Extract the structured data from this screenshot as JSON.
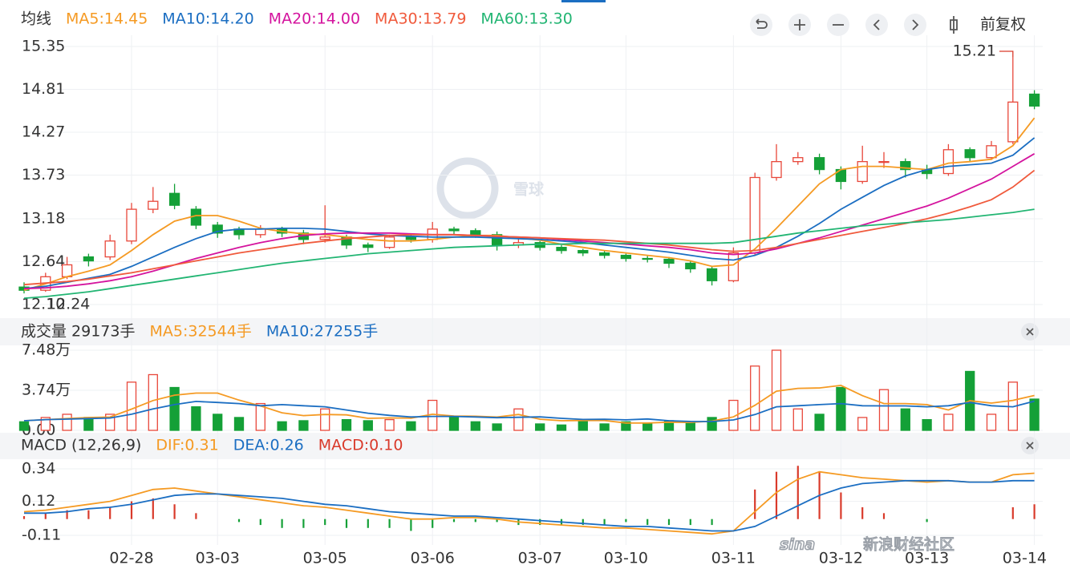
{
  "toolbar_label": "前复权",
  "watermark": "雪球",
  "footer_watermark": [
    "sina",
    "新浪财经社区"
  ],
  "chart_data": [
    {
      "type": "candlestick",
      "title": "均线",
      "categories": [
        null,
        null,
        null,
        null,
        null,
        "02-28",
        null,
        null,
        null,
        "03-03",
        null,
        null,
        null,
        null,
        "03-05",
        null,
        null,
        null,
        null,
        "03-06",
        null,
        null,
        null,
        null,
        "03-07",
        null,
        null,
        null,
        "03-10",
        null,
        null,
        null,
        null,
        "03-11",
        null,
        null,
        null,
        null,
        "03-12",
        null,
        null,
        null,
        "03-13",
        null,
        null,
        null,
        null,
        "03-14"
      ],
      "open": [
        12.32,
        12.28,
        12.45,
        12.7,
        12.7,
        12.9,
        13.3,
        13.5,
        13.3,
        13.1,
        13.05,
        12.98,
        13.05,
        13.0,
        12.92,
        12.95,
        12.85,
        12.82,
        12.95,
        12.92,
        13.05,
        13.03,
        12.98,
        12.85,
        12.88,
        12.82,
        12.78,
        12.75,
        12.72,
        12.68,
        12.67,
        12.62,
        12.55,
        12.4,
        12.75,
        13.7,
        13.9,
        13.95,
        13.8,
        13.65,
        13.9,
        13.9,
        13.8,
        13.75,
        14.05,
        13.95,
        14.15,
        14.75
      ],
      "high": [
        12.38,
        12.5,
        12.7,
        12.74,
        12.98,
        13.38,
        13.58,
        13.62,
        13.34,
        13.14,
        13.08,
        13.1,
        13.08,
        13.04,
        13.35,
        12.98,
        12.88,
        12.98,
        12.99,
        13.14,
        13.08,
        13.06,
        13.02,
        12.94,
        12.9,
        12.85,
        12.8,
        12.78,
        12.74,
        12.71,
        12.7,
        12.65,
        12.58,
        12.82,
        13.76,
        14.12,
        14.02,
        14.0,
        13.84,
        14.1,
        14.02,
        13.94,
        13.86,
        14.12,
        14.08,
        14.16,
        15.21,
        14.8
      ],
      "low": [
        12.24,
        12.26,
        12.42,
        12.58,
        12.66,
        12.86,
        13.25,
        13.3,
        13.05,
        12.94,
        12.92,
        12.94,
        12.95,
        12.86,
        12.88,
        12.8,
        12.76,
        12.8,
        12.88,
        12.88,
        12.98,
        12.94,
        12.78,
        12.81,
        12.78,
        12.74,
        12.71,
        12.68,
        12.64,
        12.63,
        12.56,
        12.5,
        12.34,
        12.38,
        12.72,
        13.66,
        13.86,
        13.74,
        13.55,
        13.62,
        13.82,
        13.7,
        13.68,
        13.72,
        13.9,
        13.92,
        14.12,
        14.56
      ],
      "close": [
        12.28,
        12.45,
        12.6,
        12.65,
        12.9,
        13.3,
        13.4,
        13.35,
        13.1,
        13.0,
        12.98,
        13.05,
        13.0,
        12.92,
        12.95,
        12.85,
        12.82,
        12.95,
        12.92,
        13.05,
        13.03,
        12.98,
        12.85,
        12.88,
        12.82,
        12.78,
        12.75,
        12.72,
        12.68,
        12.67,
        12.62,
        12.55,
        12.4,
        12.75,
        13.7,
        13.9,
        13.95,
        13.8,
        13.65,
        13.9,
        13.9,
        13.8,
        13.75,
        14.05,
        13.95,
        14.1,
        14.65,
        14.6
      ],
      "up_color": "#e8473a",
      "down_color": "#14a037",
      "series": [
        {
          "name": "MA5:14.45",
          "color": "#f59a23",
          "values": [
            12.28,
            12.36,
            12.45,
            12.52,
            12.6,
            12.78,
            12.98,
            13.15,
            13.22,
            13.22,
            13.15,
            13.06,
            13.02,
            12.99,
            12.98,
            12.95,
            12.92,
            12.9,
            12.9,
            12.92,
            12.95,
            12.97,
            12.97,
            12.94,
            12.91,
            12.86,
            12.82,
            12.78,
            12.75,
            12.72,
            12.69,
            12.65,
            12.58,
            12.6,
            12.8,
            13.06,
            13.34,
            13.62,
            13.8,
            13.84,
            13.84,
            13.82,
            13.8,
            13.88,
            13.9,
            13.93,
            14.1,
            14.45
          ]
        },
        {
          "name": "MA10:14.20",
          "color": "#1b6ec2",
          "values": [
            12.3,
            12.33,
            12.38,
            12.43,
            12.48,
            12.58,
            12.7,
            12.82,
            12.93,
            13.02,
            13.05,
            13.05,
            13.06,
            13.06,
            13.05,
            13.02,
            12.99,
            12.97,
            12.96,
            12.95,
            12.95,
            12.95,
            12.94,
            12.93,
            12.92,
            12.9,
            12.88,
            12.85,
            12.82,
            12.79,
            12.76,
            12.72,
            12.68,
            12.66,
            12.72,
            12.82,
            12.96,
            13.12,
            13.3,
            13.45,
            13.6,
            13.72,
            13.8,
            13.84,
            13.86,
            13.88,
            13.98,
            14.2
          ]
        },
        {
          "name": "MA20:14.00",
          "color": "#d4149e",
          "values": [
            12.3,
            12.31,
            12.33,
            12.36,
            12.4,
            12.45,
            12.52,
            12.6,
            12.68,
            12.75,
            12.82,
            12.88,
            12.93,
            12.97,
            12.99,
            13.0,
            13.0,
            13.0,
            12.99,
            12.98,
            12.98,
            12.97,
            12.96,
            12.95,
            12.94,
            12.92,
            12.9,
            12.88,
            12.86,
            12.84,
            12.82,
            12.79,
            12.75,
            12.73,
            12.75,
            12.8,
            12.87,
            12.94,
            13.02,
            13.1,
            13.18,
            13.26,
            13.34,
            13.44,
            13.56,
            13.68,
            13.84,
            14.0
          ]
        },
        {
          "name": "MA30:13.79",
          "color": "#f05a3c",
          "values": [
            12.35,
            12.37,
            12.39,
            12.42,
            12.46,
            12.5,
            12.55,
            12.6,
            12.65,
            12.7,
            12.75,
            12.79,
            12.83,
            12.87,
            12.9,
            12.93,
            12.95,
            12.97,
            12.98,
            12.98,
            12.98,
            12.97,
            12.96,
            12.95,
            12.94,
            12.93,
            12.92,
            12.91,
            12.89,
            12.87,
            12.85,
            12.82,
            12.79,
            12.77,
            12.78,
            12.82,
            12.87,
            12.92,
            12.97,
            13.02,
            13.07,
            13.12,
            13.18,
            13.25,
            13.33,
            13.42,
            13.58,
            13.79
          ]
        },
        {
          "name": "MA60:13.30",
          "color": "#22b573",
          "values": [
            12.18,
            12.2,
            12.23,
            12.26,
            12.3,
            12.34,
            12.38,
            12.42,
            12.46,
            12.5,
            12.54,
            12.58,
            12.62,
            12.65,
            12.68,
            12.71,
            12.74,
            12.76,
            12.78,
            12.8,
            12.82,
            12.83,
            12.84,
            12.85,
            12.86,
            12.86,
            12.87,
            12.87,
            12.87,
            12.87,
            12.87,
            12.87,
            12.87,
            12.88,
            12.92,
            12.96,
            13.0,
            13.03,
            13.06,
            13.09,
            13.11,
            13.13,
            13.15,
            13.17,
            13.2,
            13.23,
            13.26,
            13.3
          ]
        }
      ],
      "ylim": [
        12.1,
        15.35
      ],
      "yticks": [
        15.35,
        14.81,
        14.27,
        13.73,
        13.18,
        12.64,
        {
          "value": 12.1,
          "label": "12.10"
        }
      ],
      "annotations": [
        {
          "text": "15.21",
          "value": 15.21
        },
        {
          "text": "12.24",
          "value": 12.24
        }
      ],
      "grid": true
    },
    {
      "type": "bar",
      "title": "成交量 29173手",
      "values": [
        8000,
        12000,
        15000,
        12000,
        15000,
        45000,
        52000,
        40000,
        22000,
        15000,
        12000,
        25000,
        8000,
        9000,
        20000,
        10000,
        9000,
        10000,
        8000,
        28000,
        12000,
        8000,
        6000,
        20000,
        6000,
        5000,
        9000,
        6000,
        8000,
        6000,
        9000,
        8000,
        12000,
        28000,
        60000,
        74800,
        20000,
        15000,
        40000,
        12000,
        38000,
        20000,
        10000,
        15000,
        55000,
        15000,
        45000,
        29173
      ],
      "series": [
        {
          "name": "MA5:32544手",
          "color": "#f59a23",
          "values": [
            9000,
            10000,
            11000,
            12000,
            12400,
            19800,
            27800,
            32800,
            34800,
            34800,
            28200,
            22800,
            16400,
            13800,
            14800,
            14400,
            11200,
            11600,
            11400,
            15000,
            13400,
            13200,
            12400,
            14800,
            10400,
            9000,
            9200,
            9200,
            6800,
            6800,
            7600,
            7400,
            8600,
            12600,
            23400,
            36600,
            39200,
            39600,
            42000,
            32400,
            25000,
            25000,
            24000,
            19000,
            27600,
            25400,
            28000,
            32544
          ]
        },
        {
          "name": "MA10:27255手",
          "color": "#1b6ec2",
          "values": [
            9000,
            10000,
            10500,
            11000,
            11500,
            15000,
            20000,
            24000,
            27000,
            26000,
            25000,
            23000,
            24000,
            23000,
            22000,
            19000,
            16000,
            14000,
            12500,
            13000,
            13000,
            12500,
            11800,
            12200,
            12600,
            11200,
            10200,
            10400,
            9800,
            10600,
            9000,
            8300,
            8200,
            9700,
            14700,
            22000,
            23000,
            24000,
            25000,
            23000,
            22800,
            22800,
            22000,
            23000,
            26000,
            23000,
            22000,
            27255
          ]
        }
      ],
      "ylim": [
        0,
        74800
      ],
      "yticks": [
        {
          "value": 74800,
          "label": "7.48万"
        },
        {
          "value": 37400,
          "label": "3.74万"
        },
        {
          "value": 0,
          "label": "0.00"
        }
      ]
    },
    {
      "type": "macd",
      "title": "MACD (12,26,9)",
      "series": [
        {
          "name": "DIF:0.31",
          "color": "#f59a23",
          "values": [
            0.05,
            0.06,
            0.08,
            0.1,
            0.12,
            0.16,
            0.2,
            0.21,
            0.19,
            0.17,
            0.15,
            0.13,
            0.11,
            0.09,
            0.08,
            0.06,
            0.04,
            0.02,
            0.0,
            0.0,
            0.01,
            0.01,
            0.0,
            -0.02,
            -0.03,
            -0.04,
            -0.05,
            -0.06,
            -0.06,
            -0.07,
            -0.08,
            -0.09,
            -0.1,
            -0.08,
            0.05,
            0.18,
            0.27,
            0.32,
            0.3,
            0.28,
            0.27,
            0.26,
            0.25,
            0.26,
            0.25,
            0.25,
            0.3,
            0.31
          ]
        },
        {
          "name": "DEA:0.26",
          "color": "#1b6ec2",
          "values": [
            0.04,
            0.04,
            0.05,
            0.07,
            0.08,
            0.1,
            0.13,
            0.16,
            0.17,
            0.17,
            0.16,
            0.15,
            0.14,
            0.12,
            0.1,
            0.09,
            0.07,
            0.05,
            0.04,
            0.03,
            0.02,
            0.02,
            0.01,
            0.0,
            -0.01,
            -0.02,
            -0.03,
            -0.04,
            -0.05,
            -0.05,
            -0.06,
            -0.07,
            -0.08,
            -0.08,
            -0.05,
            0.02,
            0.09,
            0.16,
            0.21,
            0.24,
            0.25,
            0.26,
            0.26,
            0.26,
            0.25,
            0.25,
            0.26,
            0.26
          ]
        }
      ],
      "histogram": {
        "name": "MACD:0.10",
        "color": "#d93a2b",
        "negative_color": "#14a037",
        "values": [
          0.02,
          0.04,
          0.06,
          0.06,
          0.08,
          0.12,
          0.14,
          0.1,
          0.04,
          0.0,
          -0.02,
          -0.04,
          -0.06,
          -0.06,
          -0.04,
          -0.06,
          -0.06,
          -0.06,
          -0.08,
          -0.06,
          -0.02,
          -0.02,
          -0.02,
          -0.04,
          -0.04,
          -0.04,
          -0.04,
          -0.04,
          -0.02,
          -0.04,
          -0.04,
          -0.04,
          -0.04,
          0.0,
          0.2,
          0.32,
          0.36,
          0.32,
          0.18,
          0.08,
          0.04,
          0.0,
          -0.02,
          0.0,
          0.0,
          0.0,
          0.08,
          0.1
        ]
      },
      "ylim": [
        -0.11,
        0.34
      ],
      "yticks": [
        0.34,
        0.12,
        -0.11
      ]
    }
  ]
}
